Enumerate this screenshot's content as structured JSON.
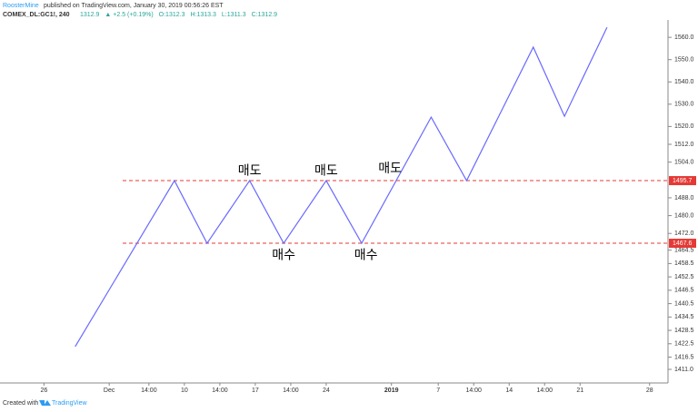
{
  "header": {
    "author": "RoosterMine",
    "published": "published on TradingView.com, January 30, 2019 00:56:26 EST",
    "symbol": "COMEX_DL:GC1!, 240",
    "quote": [
      "1312.9",
      "▲ +2.5 (+0.19%)",
      "O:1312.3",
      "H:1313.3",
      "L:1311.3",
      "C:1312.9"
    ]
  },
  "footer": {
    "text": "Created with",
    "brand": "TradingView"
  },
  "chart_data": {
    "type": "line",
    "x": [
      2.2,
      9.2,
      11.5,
      14.5,
      16.9,
      19.9,
      22.4,
      27.3,
      29.8,
      34.5,
      36.7,
      39.7
    ],
    "series": [
      {
        "name": "GC1!",
        "color": "#6a6aff",
        "values": [
          1421.2,
          1495.7,
          1467.6,
          1495.7,
          1467.6,
          1495.7,
          1467.6,
          1524.2,
          1495.7,
          1555.6,
          1524.6,
          1564.5
        ]
      }
    ],
    "xlim": [
      -3.1,
      44.0
    ],
    "xticks": [
      {
        "value": 0,
        "label": "26"
      },
      {
        "value": 4.6,
        "label": "Dec"
      },
      {
        "value": 7.4,
        "label": "14:00"
      },
      {
        "value": 9.9,
        "label": "10"
      },
      {
        "value": 12.4,
        "label": "14:00"
      },
      {
        "value": 14.9,
        "label": "17"
      },
      {
        "value": 17.4,
        "label": "14:00"
      },
      {
        "value": 19.9,
        "label": "24"
      },
      {
        "value": 24.5,
        "label": "2019"
      },
      {
        "value": 27.8,
        "label": "7"
      },
      {
        "value": 30.3,
        "label": "14:00"
      },
      {
        "value": 32.8,
        "label": "14"
      },
      {
        "value": 35.3,
        "label": "14:00"
      },
      {
        "value": 37.8,
        "label": "21"
      },
      {
        "value": 42.7,
        "label": "28"
      }
    ],
    "ylim": [
      1404.9,
      1567.8
    ],
    "yticks": [
      {
        "value": 1560,
        "label": "1560.0"
      },
      {
        "value": 1550,
        "label": "1550.0"
      },
      {
        "value": 1540,
        "label": "1540.0"
      },
      {
        "value": 1530,
        "label": "1530.0"
      },
      {
        "value": 1520,
        "label": "1520.0"
      },
      {
        "value": 1512,
        "label": "1512.0"
      },
      {
        "value": 1504,
        "label": "1504.0"
      },
      {
        "value": 1488,
        "label": "1488.0"
      },
      {
        "value": 1480,
        "label": "1480.0"
      },
      {
        "value": 1472,
        "label": "1472.0"
      },
      1464.5,
      1458.5,
      1452.5,
      1446.5,
      1440.5,
      1434.5,
      1428.5,
      1422.5,
      1416.5,
      {
        "value": 1411,
        "label": "1411.0"
      }
    ],
    "hlines": [
      {
        "value": 1495.7,
        "color": "#e53935"
      },
      {
        "value": 1467.6,
        "color": "#e53935"
      }
    ],
    "annotations": [
      {
        "text": "매도",
        "x": 14.5,
        "y": 1500
      },
      {
        "text": "매도",
        "x": 19.9,
        "y": 1500
      },
      {
        "text": "매도",
        "x": 24.4,
        "y": 1501
      },
      {
        "text": "매수",
        "x": 16.9,
        "y": 1462.2
      },
      {
        "text": "매수",
        "x": 22.7,
        "y": 1462.2
      }
    ]
  }
}
